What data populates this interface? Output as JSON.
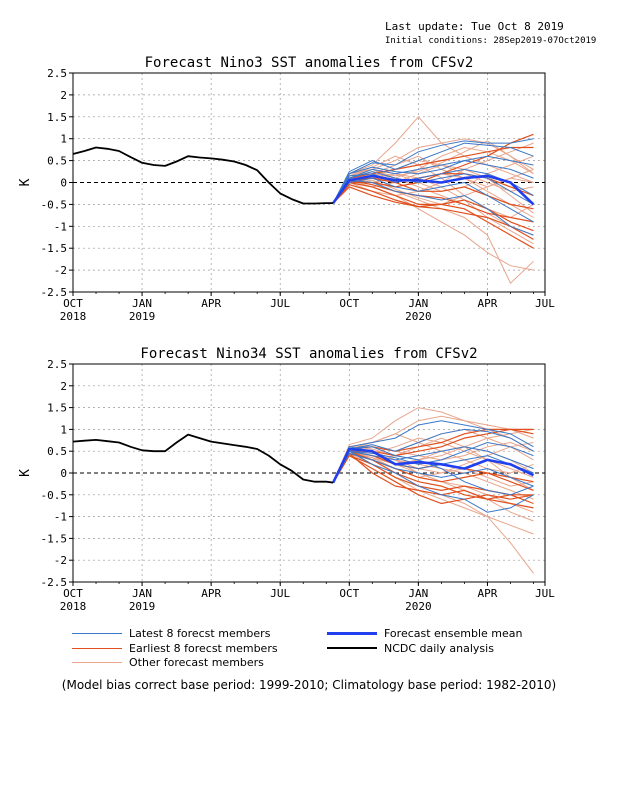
{
  "header": {
    "last_update": "Last update: Tue Oct 8 2019",
    "initial_conditions": "Initial conditions: 28Sep2019-07Oct2019"
  },
  "colors": {
    "latest": "#3a78c8",
    "earliest": "#e0501e",
    "other": "#e8a58c",
    "mean": "#2040f0",
    "analysis": "#000000"
  },
  "legend": {
    "latest": "Latest 8 forecst members",
    "earliest": "Earliest 8 forecst members",
    "other": "Other forecast members",
    "mean": "Forecast ensemble mean",
    "analysis": "NCDC daily analysis"
  },
  "footnote": "(Model bias correct base period: 1999-2010; Climatology base period: 1982-2010)",
  "chart_data": [
    {
      "type": "line",
      "title": "Forecast Nino3 SST anomalies from CFSv2",
      "ylabel": "K",
      "ylim": [
        -2.5,
        2.5
      ],
      "yticks": [
        "2.5",
        "2",
        "1.5",
        "1",
        "0.5",
        "0",
        "-0.5",
        "-1",
        "-1.5",
        "-2",
        "-2.5"
      ],
      "xlim": [
        0,
        20.5
      ],
      "x_ticks": [
        {
          "x": 0,
          "label": "OCT",
          "year": "2018"
        },
        {
          "x": 3,
          "label": "JAN",
          "year": "2019"
        },
        {
          "x": 6,
          "label": "APR",
          "year": ""
        },
        {
          "x": 9,
          "label": "JUL",
          "year": ""
        },
        {
          "x": 12,
          "label": "OCT",
          "year": ""
        },
        {
          "x": 15,
          "label": "JAN",
          "year": "2020"
        },
        {
          "x": 18,
          "label": "APR",
          "year": ""
        },
        {
          "x": 20.5,
          "label": "JUL",
          "year": ""
        }
      ],
      "grid": true,
      "analysis": {
        "name": "NCDC daily analysis",
        "x": [
          0,
          0.5,
          1,
          1.5,
          2,
          2.5,
          3,
          3.5,
          4,
          4.5,
          5,
          5.5,
          6,
          6.5,
          7,
          7.5,
          8,
          8.5,
          9,
          9.5,
          10,
          10.5,
          11,
          11.3
        ],
        "y": [
          0.65,
          0.72,
          0.8,
          0.77,
          0.72,
          0.58,
          0.45,
          0.4,
          0.38,
          0.48,
          0.6,
          0.57,
          0.55,
          0.52,
          0.48,
          0.4,
          0.28,
          0.0,
          -0.25,
          -0.38,
          -0.48,
          -0.48,
          -0.47,
          -0.47
        ]
      },
      "forecast_x": [
        11.3,
        12,
        13,
        14,
        15,
        16,
        17,
        18,
        19,
        20
      ],
      "ensemble_mean": {
        "name": "Forecast ensemble mean",
        "y": [
          -0.47,
          0.05,
          0.15,
          0.05,
          0.05,
          0.0,
          0.1,
          0.15,
          0.0,
          -0.5
        ]
      },
      "latest_members": [
        [
          -0.47,
          0.2,
          0.45,
          0.4,
          0.7,
          0.85,
          0.95,
          0.9,
          0.9,
          1.0
        ],
        [
          -0.47,
          0.25,
          0.5,
          0.3,
          0.5,
          0.7,
          0.9,
          0.85,
          0.8,
          0.6
        ],
        [
          -0.47,
          0.1,
          0.3,
          0.2,
          0.3,
          0.4,
          0.5,
          0.4,
          0.3,
          0.1
        ],
        [
          -0.47,
          0.15,
          0.2,
          0.0,
          0.1,
          0.2,
          0.3,
          0.2,
          0.0,
          -0.3
        ],
        [
          -0.47,
          0.0,
          0.1,
          -0.1,
          -0.2,
          -0.1,
          0.0,
          -0.3,
          -0.6,
          -0.9
        ],
        [
          -0.47,
          0.05,
          0.0,
          -0.2,
          -0.3,
          -0.4,
          -0.3,
          -0.6,
          -1.0,
          -1.2
        ],
        [
          -0.47,
          0.1,
          0.25,
          0.1,
          0.0,
          0.1,
          0.2,
          0.1,
          -0.2,
          -0.5
        ],
        [
          -0.47,
          0.2,
          0.35,
          0.25,
          0.2,
          0.3,
          0.5,
          0.6,
          0.5,
          0.4
        ]
      ],
      "earliest_members": [
        [
          -0.47,
          0.0,
          -0.1,
          -0.3,
          -0.5,
          -0.5,
          -0.4,
          -0.6,
          -0.9,
          -1.1
        ],
        [
          -0.47,
          -0.05,
          -0.2,
          -0.4,
          -0.55,
          -0.6,
          -0.7,
          -0.8,
          -1.0,
          -1.3
        ],
        [
          -0.47,
          0.05,
          0.1,
          0.0,
          -0.2,
          -0.2,
          -0.1,
          -0.3,
          -0.5,
          -0.6
        ],
        [
          -0.47,
          0.1,
          0.2,
          0.3,
          0.4,
          0.5,
          0.6,
          0.7,
          0.8,
          0.8
        ],
        [
          -0.47,
          0.0,
          0.0,
          -0.1,
          0.0,
          0.2,
          0.4,
          0.6,
          0.9,
          1.1
        ],
        [
          -0.47,
          -0.1,
          -0.3,
          -0.45,
          -0.55,
          -0.5,
          -0.6,
          -0.9,
          -1.2,
          -1.5
        ],
        [
          -0.47,
          0.05,
          -0.05,
          -0.2,
          -0.3,
          -0.35,
          -0.5,
          -0.7,
          -0.8,
          -0.9
        ],
        [
          -0.47,
          0.0,
          0.1,
          0.0,
          0.1,
          0.2,
          0.2,
          0.1,
          -0.1,
          -0.3
        ]
      ],
      "other_members": [
        [
          -0.47,
          0.2,
          0.4,
          0.9,
          1.5,
          0.9,
          0.6,
          0.4,
          0.2,
          0.0
        ],
        [
          -0.47,
          0.15,
          0.3,
          0.5,
          0.8,
          0.9,
          1.0,
          0.9,
          0.6,
          0.3
        ],
        [
          -0.47,
          0.1,
          0.0,
          -0.2,
          -0.4,
          -0.6,
          -0.8,
          -1.2,
          -2.3,
          -1.8
        ],
        [
          -0.47,
          0.05,
          -0.1,
          -0.3,
          -0.6,
          -0.9,
          -1.2,
          -1.6,
          -1.9,
          -2.0
        ],
        [
          -0.47,
          0.1,
          0.2,
          0.1,
          0.3,
          0.6,
          0.8,
          0.7,
          0.5,
          0.2
        ],
        [
          -0.47,
          0.0,
          -0.1,
          0.0,
          0.2,
          0.4,
          0.3,
          0.1,
          -0.3,
          -0.7
        ],
        [
          -0.47,
          0.15,
          0.3,
          0.2,
          0.0,
          -0.2,
          -0.1,
          0.2,
          0.4,
          0.6
        ],
        [
          -0.47,
          0.05,
          0.1,
          0.2,
          0.1,
          -0.1,
          -0.4,
          -0.8,
          -1.1,
          -1.4
        ],
        [
          -0.47,
          0.1,
          0.15,
          0.3,
          0.5,
          0.4,
          0.2,
          0.0,
          -0.2,
          -0.1
        ],
        [
          -0.47,
          0.0,
          -0.2,
          -0.3,
          -0.2,
          0.0,
          0.3,
          0.5,
          0.7,
          0.9
        ],
        [
          -0.47,
          0.2,
          0.3,
          0.1,
          -0.1,
          -0.3,
          -0.5,
          -0.7,
          -1.0,
          -1.2
        ],
        [
          -0.47,
          0.1,
          0.2,
          0.4,
          0.6,
          0.3,
          0.1,
          -0.2,
          -0.5,
          -0.8
        ],
        [
          -0.47,
          0.05,
          0.0,
          0.1,
          0.0,
          0.2,
          0.1,
          -0.1,
          0.1,
          0.3
        ],
        [
          -0.47,
          0.15,
          0.35,
          0.6,
          0.4,
          0.1,
          -0.3,
          -0.6,
          -0.8,
          -0.5
        ],
        [
          -0.47,
          0.0,
          0.05,
          -0.15,
          -0.35,
          -0.5,
          -0.3,
          -0.1,
          0.1,
          0.0
        ],
        [
          -0.47,
          0.1,
          0.25,
          0.15,
          0.25,
          0.45,
          0.7,
          0.95,
          0.6,
          0.2
        ]
      ]
    },
    {
      "type": "line",
      "title": "Forecast Nino34 SST anomalies from CFSv2",
      "ylabel": "K",
      "ylim": [
        -2.5,
        2.5
      ],
      "yticks": [
        "2.5",
        "2",
        "1.5",
        "1",
        "0.5",
        "0",
        "-0.5",
        "-1",
        "-1.5",
        "-2",
        "-2.5"
      ],
      "xlim": [
        0,
        20.5
      ],
      "x_ticks": [
        {
          "x": 0,
          "label": "OCT",
          "year": "2018"
        },
        {
          "x": 3,
          "label": "JAN",
          "year": "2019"
        },
        {
          "x": 6,
          "label": "APR",
          "year": ""
        },
        {
          "x": 9,
          "label": "JUL",
          "year": ""
        },
        {
          "x": 12,
          "label": "OCT",
          "year": ""
        },
        {
          "x": 15,
          "label": "JAN",
          "year": "2020"
        },
        {
          "x": 18,
          "label": "APR",
          "year": ""
        },
        {
          "x": 20.5,
          "label": "JUL",
          "year": ""
        }
      ],
      "grid": true,
      "analysis": {
        "name": "NCDC daily analysis",
        "x": [
          0,
          0.5,
          1,
          1.5,
          2,
          2.5,
          3,
          3.5,
          4,
          4.5,
          5,
          5.5,
          6,
          6.5,
          7,
          7.5,
          8,
          8.5,
          9,
          9.5,
          10,
          10.5,
          11,
          11.3
        ],
        "y": [
          0.72,
          0.74,
          0.76,
          0.73,
          0.7,
          0.6,
          0.52,
          0.5,
          0.5,
          0.7,
          0.88,
          0.8,
          0.72,
          0.68,
          0.64,
          0.6,
          0.55,
          0.4,
          0.2,
          0.05,
          -0.15,
          -0.2,
          -0.2,
          -0.22
        ]
      },
      "forecast_x": [
        11.3,
        12,
        13,
        14,
        15,
        16,
        17,
        18,
        19,
        20
      ],
      "ensemble_mean": {
        "name": "Forecast ensemble mean",
        "y": [
          -0.22,
          0.55,
          0.5,
          0.2,
          0.25,
          0.2,
          0.1,
          0.3,
          0.2,
          -0.05
        ]
      },
      "latest_members": [
        [
          -0.22,
          0.6,
          0.7,
          0.8,
          1.1,
          1.2,
          1.1,
          1.0,
          0.9,
          0.6
        ],
        [
          -0.22,
          0.55,
          0.65,
          0.5,
          0.7,
          0.9,
          1.0,
          0.95,
          0.8,
          0.5
        ],
        [
          -0.22,
          0.5,
          0.4,
          0.3,
          0.4,
          0.5,
          0.6,
          0.5,
          0.3,
          0.1
        ],
        [
          -0.22,
          0.45,
          0.3,
          0.1,
          0.0,
          -0.1,
          0.0,
          0.1,
          -0.1,
          -0.3
        ],
        [
          -0.22,
          0.5,
          0.2,
          0.0,
          -0.3,
          -0.5,
          -0.6,
          -0.9,
          -0.8,
          -0.5
        ],
        [
          -0.22,
          0.6,
          0.5,
          0.2,
          0.1,
          0.2,
          0.3,
          0.4,
          0.2,
          0.0
        ],
        [
          -0.22,
          0.55,
          0.6,
          0.4,
          0.3,
          0.1,
          -0.2,
          -0.4,
          -0.5,
          -0.3
        ],
        [
          -0.22,
          0.5,
          0.45,
          0.35,
          0.2,
          0.3,
          0.5,
          0.7,
          0.6,
          0.4
        ]
      ],
      "earliest_members": [
        [
          -0.22,
          0.4,
          0.1,
          -0.2,
          -0.5,
          -0.7,
          -0.6,
          -0.5,
          -0.6,
          -0.5
        ],
        [
          -0.22,
          0.45,
          0.0,
          -0.3,
          -0.4,
          -0.5,
          -0.4,
          -0.6,
          -0.7,
          -0.8
        ],
        [
          -0.22,
          0.5,
          0.3,
          0.1,
          -0.1,
          -0.2,
          -0.1,
          0.0,
          -0.2,
          -0.4
        ],
        [
          -0.22,
          0.55,
          0.6,
          0.5,
          0.6,
          0.7,
          0.9,
          1.0,
          1.0,
          0.9
        ],
        [
          -0.22,
          0.5,
          0.5,
          0.4,
          0.5,
          0.6,
          0.8,
          0.9,
          1.0,
          1.0
        ],
        [
          -0.22,
          0.4,
          0.2,
          -0.1,
          -0.3,
          -0.4,
          -0.3,
          -0.4,
          -0.5,
          -0.5
        ],
        [
          -0.22,
          0.45,
          0.3,
          0.0,
          -0.2,
          -0.3,
          -0.5,
          -0.6,
          -0.5,
          -0.7
        ],
        [
          -0.22,
          0.5,
          0.4,
          0.2,
          0.1,
          0.2,
          0.1,
          0.0,
          -0.1,
          -0.2
        ]
      ],
      "other_members": [
        [
          -0.22,
          0.65,
          0.8,
          1.2,
          1.5,
          1.4,
          1.2,
          1.0,
          0.8,
          0.5
        ],
        [
          -0.22,
          0.6,
          0.7,
          0.9,
          1.2,
          1.3,
          1.2,
          1.1,
          1.0,
          0.8
        ],
        [
          -0.22,
          0.5,
          0.3,
          0.0,
          -0.3,
          -0.5,
          -0.7,
          -1.0,
          -1.6,
          -2.3
        ],
        [
          -0.22,
          0.45,
          0.2,
          -0.1,
          -0.4,
          -0.6,
          -0.8,
          -1.0,
          -1.2,
          -1.4
        ],
        [
          -0.22,
          0.55,
          0.6,
          0.5,
          0.7,
          0.9,
          1.0,
          0.8,
          0.6,
          0.3
        ],
        [
          -0.22,
          0.5,
          0.4,
          0.3,
          0.2,
          0.1,
          0.0,
          -0.2,
          -0.4,
          -0.6
        ],
        [
          -0.22,
          0.6,
          0.55,
          0.4,
          0.3,
          0.4,
          0.6,
          0.8,
          0.9,
          1.0
        ],
        [
          -0.22,
          0.45,
          0.35,
          0.2,
          0.0,
          -0.2,
          -0.4,
          -0.6,
          -0.9,
          -1.1
        ],
        [
          -0.22,
          0.55,
          0.45,
          0.6,
          0.8,
          0.7,
          0.5,
          0.3,
          0.1,
          -0.1
        ],
        [
          -0.22,
          0.5,
          0.5,
          0.3,
          0.1,
          0.0,
          0.2,
          0.4,
          0.6,
          0.7
        ],
        [
          -0.22,
          0.6,
          0.5,
          0.3,
          0.0,
          -0.2,
          -0.3,
          -0.5,
          -0.7,
          -0.9
        ],
        [
          -0.22,
          0.55,
          0.7,
          0.9,
          0.7,
          0.5,
          0.3,
          0.1,
          0.0,
          0.2
        ],
        [
          -0.22,
          0.5,
          0.4,
          0.2,
          0.3,
          0.5,
          0.6,
          0.5,
          0.3,
          0.0
        ],
        [
          -0.22,
          0.45,
          0.3,
          0.4,
          0.6,
          0.8,
          0.6,
          0.3,
          -0.1,
          -0.4
        ],
        [
          -0.22,
          0.6,
          0.6,
          0.5,
          0.4,
          0.3,
          0.4,
          0.6,
          0.7,
          0.5
        ],
        [
          -0.22,
          0.5,
          0.35,
          0.1,
          -0.1,
          0.0,
          0.1,
          -0.1,
          -0.3,
          -0.2
        ]
      ]
    }
  ]
}
